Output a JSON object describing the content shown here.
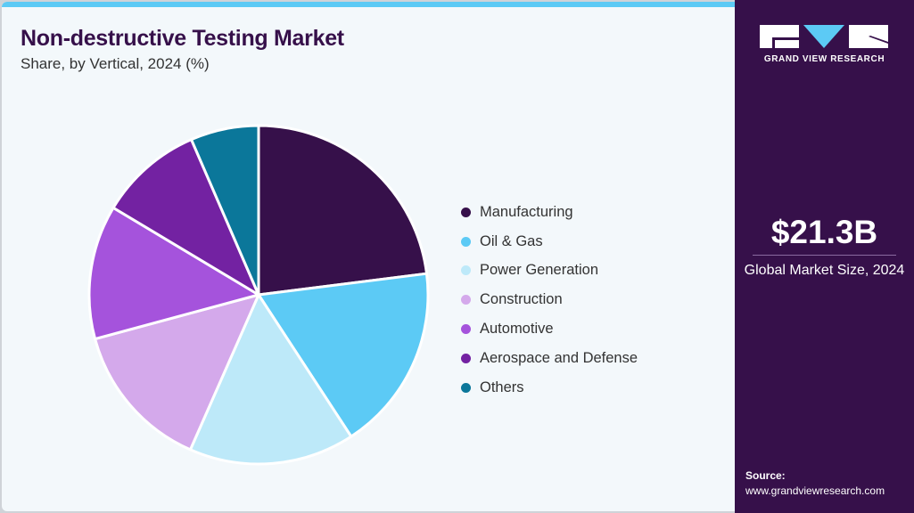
{
  "title": "Non-destructive Testing Market",
  "subtitle": "Share, by Vertical, 2024 (%)",
  "chart_data": {
    "type": "pie",
    "title": "Non-destructive Testing Market",
    "subtitle": "Share, by Vertical, 2024 (%)",
    "categories": [
      "Manufacturing",
      "Oil & Gas",
      "Power Generation",
      "Construction",
      "Automotive",
      "Aerospace and Defense",
      "Others"
    ],
    "values": [
      23.0,
      17.8,
      15.8,
      14.2,
      12.8,
      9.9,
      6.5
    ],
    "colors": [
      "#36104a",
      "#5ccaf5",
      "#bde9f9",
      "#d4a9eb",
      "#a553dc",
      "#7322a2",
      "#0b779a"
    ],
    "start": "top",
    "direction": "clockwise",
    "legend_position": "right"
  },
  "sidebar": {
    "brand": "GRAND VIEW RESEARCH",
    "market_size": "$21.3B",
    "market_size_label": "Global Market Size, 2024",
    "source_label": "Source:",
    "source_url": "www.grandviewresearch.com"
  }
}
